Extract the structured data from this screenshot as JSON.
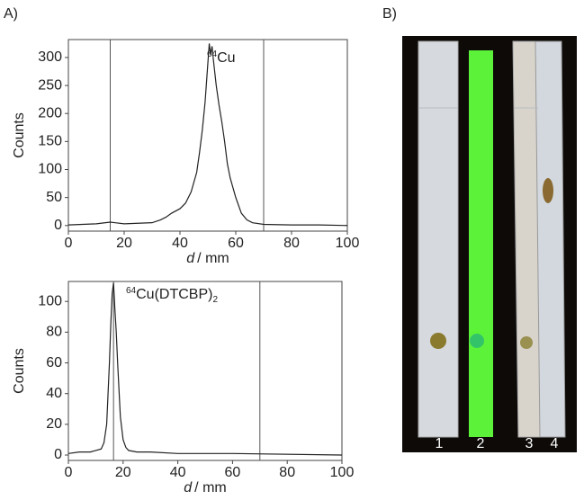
{
  "panel_labels": [
    "A)",
    "B)"
  ],
  "lanes": [
    "1",
    "2",
    "3",
    "4"
  ],
  "chart_data": [
    {
      "type": "line",
      "ylabel": "Counts",
      "xlabel": [
        "d",
        "/ mm"
      ],
      "annotation": [
        "64",
        "Cu",
        ""
      ],
      "xlim": [
        0,
        100
      ],
      "ylim": [
        -10,
        332
      ],
      "xticks": [
        0,
        20,
        40,
        60,
        80,
        100
      ],
      "yticks": [
        0,
        50,
        100,
        150,
        200,
        250,
        300
      ],
      "markers": [
        15,
        70
      ],
      "x": [
        0,
        5,
        10,
        15,
        20,
        25,
        30,
        33,
        35,
        37,
        40,
        42,
        44,
        46,
        47,
        48,
        49,
        50,
        50.5,
        51,
        51.5,
        52,
        53,
        54,
        55,
        56,
        57,
        58,
        60,
        62,
        64,
        66,
        70,
        80,
        90,
        100
      ],
      "series": [
        {
          "color": "#222222",
          "values": [
            1,
            2,
            3,
            6,
            3,
            4,
            5,
            10,
            15,
            22,
            30,
            40,
            60,
            95,
            130,
            170,
            220,
            290,
            325,
            305,
            320,
            295,
            250,
            215,
            185,
            150,
            110,
            85,
            50,
            22,
            10,
            5,
            2,
            1,
            1,
            0
          ]
        }
      ]
    },
    {
      "type": "line",
      "ylabel": "Counts",
      "xlabel": [
        "d",
        "/ mm"
      ],
      "annotation": [
        "64",
        "Cu(DTCBP)",
        "2"
      ],
      "xlim": [
        0,
        100
      ],
      "ylim": [
        -3.5,
        113
      ],
      "xticks": [
        0,
        20,
        40,
        60,
        80,
        100
      ],
      "yticks": [
        0,
        20,
        40,
        60,
        80,
        100
      ],
      "markers": [
        16.5,
        70
      ],
      "x": [
        0,
        4,
        8,
        10,
        12,
        13,
        14,
        15,
        15.5,
        16,
        16.5,
        17,
        17.5,
        18,
        19,
        20,
        21,
        22,
        25,
        30,
        40,
        50,
        60,
        100
      ],
      "series": [
        {
          "color": "#222222",
          "values": [
            1,
            2,
            2,
            3,
            4,
            8,
            20,
            60,
            85,
            105,
            112,
            95,
            80,
            60,
            25,
            10,
            5,
            3,
            2,
            2,
            1,
            1,
            1,
            0
          ]
        }
      ]
    }
  ]
}
